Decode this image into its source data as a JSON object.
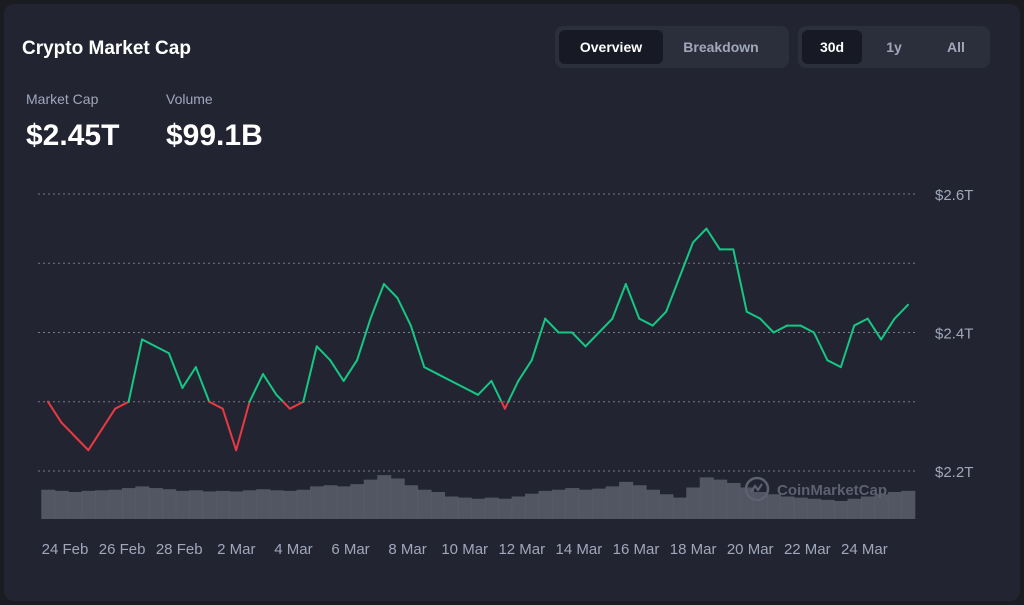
{
  "header": {
    "title": "Crypto Market Cap",
    "view_tabs": [
      {
        "label": "Overview",
        "active": true
      },
      {
        "label": "Breakdown",
        "active": false
      }
    ],
    "range_tabs": [
      {
        "label": "30d",
        "active": true
      },
      {
        "label": "1y",
        "active": false
      },
      {
        "label": "All",
        "active": false
      }
    ]
  },
  "stats": {
    "market_cap_label": "Market Cap",
    "market_cap_value": "$2.45T",
    "volume_label": "Volume",
    "volume_value": "$99.1B"
  },
  "watermark": "CoinMarketCap",
  "colors": {
    "up": "#16c784",
    "down": "#ea3943",
    "grid": "#8a8f9e",
    "volume": "#5b5f6c",
    "axis_text": "#a1a7bb"
  },
  "chart_data": {
    "type": "line",
    "title": "Crypto Market Cap",
    "ylim": [
      2.2,
      2.6
    ],
    "yticks": [
      2.2,
      2.3,
      2.4,
      2.5,
      2.6
    ],
    "ytick_labels": [
      {
        "value": 2.6,
        "label": "$2.6T"
      },
      {
        "value": 2.4,
        "label": "$2.4T"
      },
      {
        "value": 2.2,
        "label": "$2.2T"
      }
    ],
    "baseline": 2.3,
    "x_start_label": "24 Feb",
    "xticks": [
      "24 Feb",
      "26 Feb",
      "28 Feb",
      "2 Mar",
      "4 Mar",
      "6 Mar",
      "8 Mar",
      "10 Mar",
      "12 Mar",
      "14 Mar",
      "16 Mar",
      "18 Mar",
      "20 Mar",
      "22 Mar",
      "24 Mar"
    ],
    "grid": true,
    "series": [
      {
        "values": [
          2.3,
          2.27,
          2.25,
          2.23,
          2.26,
          2.29,
          2.3,
          2.39,
          2.38,
          2.37,
          2.32,
          2.35,
          2.3,
          2.29,
          2.23,
          2.3,
          2.34,
          2.31,
          2.29,
          2.3,
          2.38,
          2.36,
          2.33,
          2.36,
          2.42,
          2.47,
          2.45,
          2.41,
          2.35,
          2.34,
          2.33,
          2.32,
          2.31,
          2.33,
          2.29,
          2.33,
          2.36,
          2.42,
          2.4,
          2.4,
          2.38,
          2.4,
          2.42,
          2.47,
          2.42,
          2.41,
          2.43,
          2.48,
          2.53,
          2.55,
          2.52,
          2.52,
          2.43,
          2.42,
          2.4,
          2.41,
          2.41,
          2.4,
          2.36,
          2.35,
          2.41,
          2.42,
          2.39,
          2.42,
          2.44
        ]
      }
    ],
    "volume": {
      "values": [
        0.52,
        0.5,
        0.48,
        0.5,
        0.51,
        0.52,
        0.55,
        0.58,
        0.55,
        0.53,
        0.5,
        0.51,
        0.49,
        0.5,
        0.49,
        0.51,
        0.53,
        0.51,
        0.5,
        0.52,
        0.58,
        0.6,
        0.58,
        0.62,
        0.7,
        0.78,
        0.72,
        0.6,
        0.52,
        0.48,
        0.4,
        0.38,
        0.36,
        0.38,
        0.36,
        0.4,
        0.45,
        0.5,
        0.52,
        0.55,
        0.52,
        0.54,
        0.58,
        0.66,
        0.6,
        0.52,
        0.44,
        0.38,
        0.56,
        0.74,
        0.7,
        0.64,
        0.56,
        0.48,
        0.44,
        0.4,
        0.38,
        0.36,
        0.34,
        0.32,
        0.36,
        0.4,
        0.44,
        0.48,
        0.5
      ]
    }
  }
}
